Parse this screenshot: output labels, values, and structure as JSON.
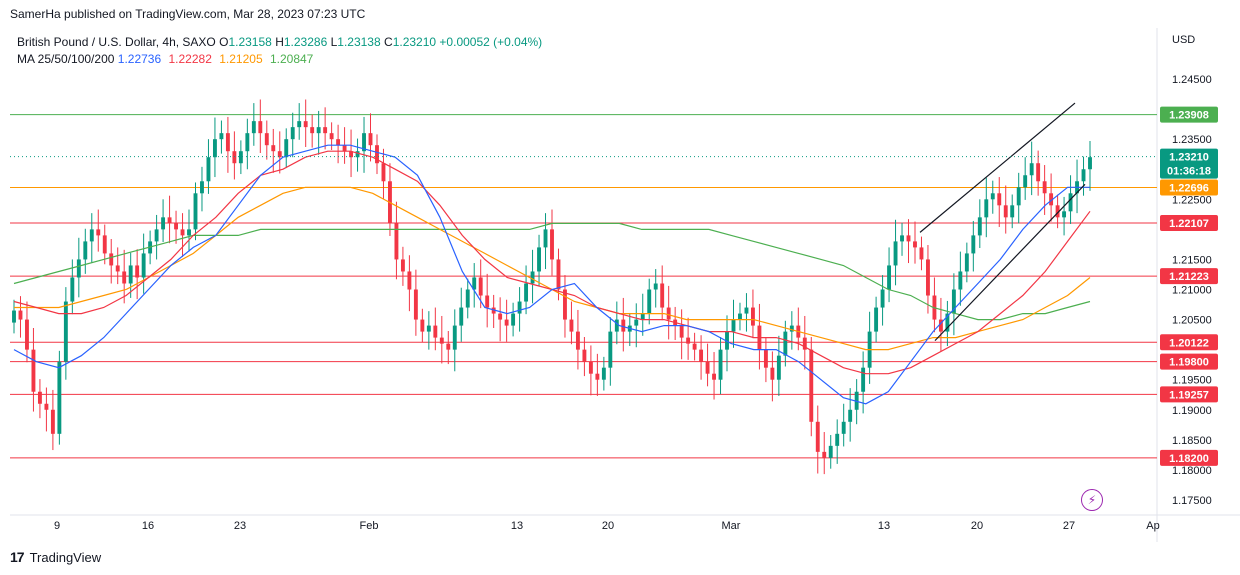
{
  "header": {
    "published": "SamerHa published on TradingView.com, Mar 28, 2023 07:23 UTC"
  },
  "legend": {
    "symbol": "British Pound / U.S. Dollar, 4h, SAXO",
    "ohlc": [
      {
        "label": "O",
        "value": "1.23158"
      },
      {
        "label": "H",
        "value": "1.23286"
      },
      {
        "label": "L",
        "value": "1.23138"
      },
      {
        "label": "C",
        "value": "1.23210"
      }
    ],
    "change": "+0.00052 (+0.04%)",
    "ma_label": "MA 25/50/100/200",
    "ma_values": [
      {
        "value": "1.22736",
        "color": "#2962ff"
      },
      {
        "value": "1.22282",
        "color": "#f23645"
      },
      {
        "value": "1.21205",
        "color": "#ff9800"
      },
      {
        "value": "1.20847",
        "color": "#4caf50"
      }
    ]
  },
  "currency": "USD",
  "footer": {
    "brand": "TradingView"
  },
  "chart_data": {
    "type": "candlestick",
    "ylim": [
      1.1725,
      1.2485
    ],
    "y_ticks": [
      "1.17500",
      "1.18000",
      "1.18500",
      "1.19000",
      "1.19500",
      "1.20500",
      "1.21000",
      "1.21500",
      "1.22500",
      "1.23500",
      "1.24500"
    ],
    "x_ticks": [
      "9",
      "16",
      "23",
      "Feb",
      "13",
      "20",
      "Mar",
      "13",
      "20",
      "27",
      "Ap"
    ],
    "price_tag": {
      "value": "1.23210",
      "countdown": "01:36:18",
      "color": "#089981"
    },
    "levels": [
      {
        "value": 1.23908,
        "label": "1.23908",
        "color": "#4caf50"
      },
      {
        "value": 1.22696,
        "label": "1.22696",
        "color": "#ff9800"
      },
      {
        "value": 1.22107,
        "label": "1.22107",
        "color": "#f23645"
      },
      {
        "value": 1.21223,
        "label": "1.21223",
        "color": "#f23645"
      },
      {
        "value": 1.20122,
        "label": "1.20122",
        "color": "#f23645"
      },
      {
        "value": 1.198,
        "label": "1.19800",
        "color": "#f23645"
      },
      {
        "value": 1.19257,
        "label": "1.19257",
        "color": "#f23645"
      },
      {
        "value": 1.182,
        "label": "1.18200",
        "color": "#f23645"
      }
    ],
    "closes": [
      1.2065,
      1.205,
      1.2,
      1.193,
      1.191,
      1.19,
      1.186,
      1.198,
      1.208,
      1.212,
      1.215,
      1.218,
      1.22,
      1.219,
      1.216,
      1.214,
      1.213,
      1.211,
      1.214,
      1.212,
      1.216,
      1.218,
      1.22,
      1.222,
      1.221,
      1.22,
      1.219,
      1.22,
      1.226,
      1.228,
      1.232,
      1.235,
      1.236,
      1.233,
      1.231,
      1.233,
      1.236,
      1.238,
      1.236,
      1.234,
      1.233,
      1.232,
      1.235,
      1.237,
      1.238,
      1.237,
      1.236,
      1.237,
      1.236,
      1.235,
      1.234,
      1.233,
      1.232,
      1.233,
      1.236,
      1.234,
      1.231,
      1.228,
      1.221,
      1.215,
      1.213,
      1.21,
      1.205,
      1.203,
      1.204,
      1.202,
      1.201,
      1.2,
      1.204,
      1.207,
      1.21,
      1.212,
      1.209,
      1.207,
      1.206,
      1.205,
      1.204,
      1.206,
      1.208,
      1.211,
      1.213,
      1.217,
      1.22,
      1.215,
      1.21,
      1.205,
      1.203,
      1.2,
      1.198,
      1.196,
      1.195,
      1.197,
      1.203,
      1.205,
      1.203,
      1.204,
      1.205,
      1.206,
      1.21,
      1.211,
      1.207,
      1.205,
      1.204,
      1.202,
      1.201,
      1.2,
      1.198,
      1.196,
      1.195,
      1.2,
      1.203,
      1.205,
      1.206,
      1.207,
      1.204,
      1.2,
      1.197,
      1.195,
      1.199,
      1.203,
      1.204,
      1.202,
      1.2,
      1.188,
      1.183,
      1.182,
      1.184,
      1.186,
      1.188,
      1.19,
      1.193,
      1.197,
      1.203,
      1.207,
      1.21,
      1.214,
      1.218,
      1.219,
      1.218,
      1.217,
      1.215,
      1.209,
      1.205,
      1.203,
      1.206,
      1.21,
      1.213,
      1.216,
      1.219,
      1.222,
      1.225,
      1.226,
      1.224,
      1.222,
      1.224,
      1.227,
      1.229,
      1.231,
      1.228,
      1.226,
      1.224,
      1.222,
      1.223,
      1.226,
      1.228,
      1.23,
      1.232
    ],
    "ma25": [
      1.2,
      1.198,
      1.197,
      1.199,
      1.202,
      1.206,
      1.21,
      1.214,
      1.217,
      1.219,
      1.224,
      1.229,
      1.232,
      1.233,
      1.234,
      1.234,
      1.233,
      1.232,
      1.229,
      1.222,
      1.213,
      1.207,
      1.206,
      1.207,
      1.21,
      1.211,
      1.207,
      1.204,
      1.203,
      1.204,
      1.204,
      1.203,
      1.201,
      1.2,
      1.2,
      1.198,
      1.195,
      1.192,
      1.191,
      1.193,
      1.198,
      1.203,
      1.207,
      1.211,
      1.215,
      1.22,
      1.224,
      1.227,
      1.227
    ],
    "ma50": [
      1.208,
      1.207,
      1.206,
      1.206,
      1.207,
      1.209,
      1.212,
      1.215,
      1.219,
      1.222,
      1.226,
      1.229,
      1.23,
      1.232,
      1.233,
      1.233,
      1.232,
      1.23,
      1.228,
      1.224,
      1.219,
      1.215,
      1.212,
      1.211,
      1.21,
      1.209,
      1.207,
      1.206,
      1.205,
      1.205,
      1.204,
      1.203,
      1.203,
      1.202,
      1.202,
      1.201,
      1.199,
      1.197,
      1.196,
      1.196,
      1.197,
      1.199,
      1.201,
      1.203,
      1.206,
      1.209,
      1.213,
      1.218,
      1.223
    ],
    "ma100": [
      1.207,
      1.207,
      1.207,
      1.208,
      1.209,
      1.21,
      1.212,
      1.214,
      1.216,
      1.219,
      1.222,
      1.224,
      1.226,
      1.227,
      1.227,
      1.227,
      1.226,
      1.224,
      1.222,
      1.22,
      1.218,
      1.216,
      1.214,
      1.212,
      1.21,
      1.208,
      1.207,
      1.206,
      1.206,
      1.206,
      1.205,
      1.205,
      1.205,
      1.205,
      1.204,
      1.203,
      1.202,
      1.201,
      1.2,
      1.2,
      1.201,
      1.202,
      1.202,
      1.203,
      1.204,
      1.205,
      1.207,
      1.209,
      1.212
    ],
    "ma200": [
      1.211,
      1.212,
      1.213,
      1.214,
      1.215,
      1.216,
      1.217,
      1.218,
      1.219,
      1.219,
      1.219,
      1.22,
      1.22,
      1.22,
      1.22,
      1.22,
      1.22,
      1.22,
      1.22,
      1.22,
      1.22,
      1.22,
      1.22,
      1.22,
      1.221,
      1.221,
      1.221,
      1.221,
      1.22,
      1.22,
      1.22,
      1.22,
      1.219,
      1.218,
      1.217,
      1.216,
      1.215,
      1.214,
      1.212,
      1.21,
      1.209,
      1.207,
      1.206,
      1.205,
      1.205,
      1.206,
      1.206,
      1.207,
      1.208
    ],
    "channel_upper": [
      [
        1.2195,
        1.241
      ]
    ],
    "channel_lower": [
      [
        1.2015,
        1.2275
      ]
    ]
  }
}
